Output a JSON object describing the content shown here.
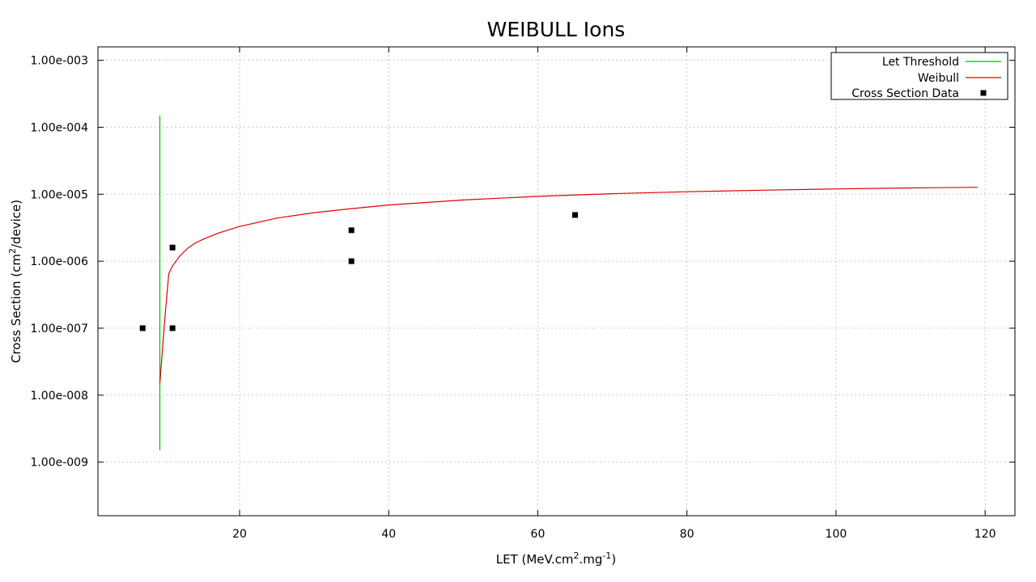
{
  "chart_data": {
    "type": "scatter",
    "title": "WEIBULL Ions",
    "xlabel": {
      "prefix": "LET (MeV.cm",
      "sup1": "2",
      "mid": ".mg",
      "sup2": "-1",
      "suffix": ")"
    },
    "ylabel": {
      "prefix": "Cross Section (cm",
      "sup": "2",
      "suffix": "/device)"
    },
    "xlim": [
      1,
      124
    ],
    "ylim_log10": [
      -9.8,
      -2.8
    ],
    "log_y": true,
    "grid": true,
    "legend_position": "top-right",
    "x_ticks": [
      {
        "value": 20,
        "label": "20"
      },
      {
        "value": 40,
        "label": "40"
      },
      {
        "value": 60,
        "label": "60"
      },
      {
        "value": 80,
        "label": "80"
      },
      {
        "value": 100,
        "label": "100"
      },
      {
        "value": 120,
        "label": "120"
      }
    ],
    "y_ticks": [
      {
        "value": 0.001,
        "label": "1.00e-003"
      },
      {
        "value": 0.0001,
        "label": "1.00e-004"
      },
      {
        "value": 1e-05,
        "label": "1.00e-005"
      },
      {
        "value": 1e-06,
        "label": "1.00e-006"
      },
      {
        "value": 1e-07,
        "label": "1.00e-007"
      },
      {
        "value": 1e-08,
        "label": "1.00e-008"
      },
      {
        "value": 1e-09,
        "label": "1.00e-009"
      }
    ],
    "series": [
      {
        "name": "Let Threshold",
        "kind": "line",
        "color": "#00c000",
        "x": [
          9.3,
          9.3
        ],
        "y": [
          1.5e-09,
          0.00015
        ]
      },
      {
        "name": "Weibull",
        "kind": "line",
        "color": "#e00000",
        "x": [
          9.3,
          10,
          10.5,
          11,
          12,
          13,
          14,
          15,
          17,
          20,
          25,
          30,
          35,
          40,
          50,
          60,
          70,
          80,
          90,
          100,
          110,
          119
        ],
        "y": [
          1.5e-08,
          1.5e-07,
          6.5e-07,
          8.5e-07,
          1.2e-06,
          1.55e-06,
          1.85e-06,
          2.1e-06,
          2.6e-06,
          3.3e-06,
          4.4e-06,
          5.3e-06,
          6.1e-06,
          6.9e-06,
          8.2e-06,
          9.3e-06,
          1.02e-05,
          1.09e-05,
          1.15e-05,
          1.2e-05,
          1.24e-05,
          1.27e-05
        ]
      },
      {
        "name": "Cross Section Data",
        "kind": "scatter",
        "color": "#000000",
        "x": [
          7,
          11,
          11,
          35,
          35,
          65
        ],
        "y": [
          1e-07,
          1e-07,
          1.6e-06,
          1e-06,
          2.9e-06,
          4.9e-06
        ]
      }
    ]
  }
}
